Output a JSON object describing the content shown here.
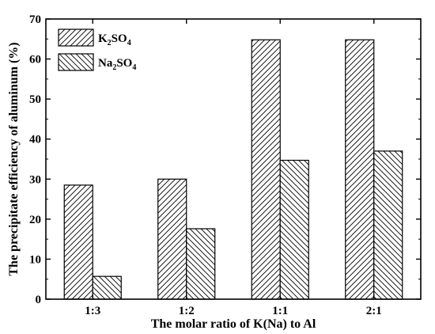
{
  "chart_data": {
    "type": "bar",
    "categories": [
      "1:3",
      "1:2",
      "1:1",
      "2:1"
    ],
    "series": [
      {
        "name": "K2SO4",
        "name_parts": [
          "K",
          "2",
          "SO",
          "4"
        ],
        "values": [
          28.5,
          30.0,
          64.8,
          64.8
        ],
        "hatch": "forward"
      },
      {
        "name": "Na2SO4",
        "name_parts": [
          "Na",
          "2",
          "SO",
          "4"
        ],
        "values": [
          5.7,
          17.6,
          34.7,
          37.0
        ],
        "hatch": "backward"
      }
    ],
    "xlabel": "The molar ratio of K(Na) to Al",
    "ylabel": "The precipitate efficiency of aluminum (%)",
    "ylim": [
      0,
      70
    ],
    "yticks": [
      0,
      10,
      20,
      30,
      40,
      50,
      60,
      70
    ],
    "legend": "top-left",
    "grid": false
  }
}
